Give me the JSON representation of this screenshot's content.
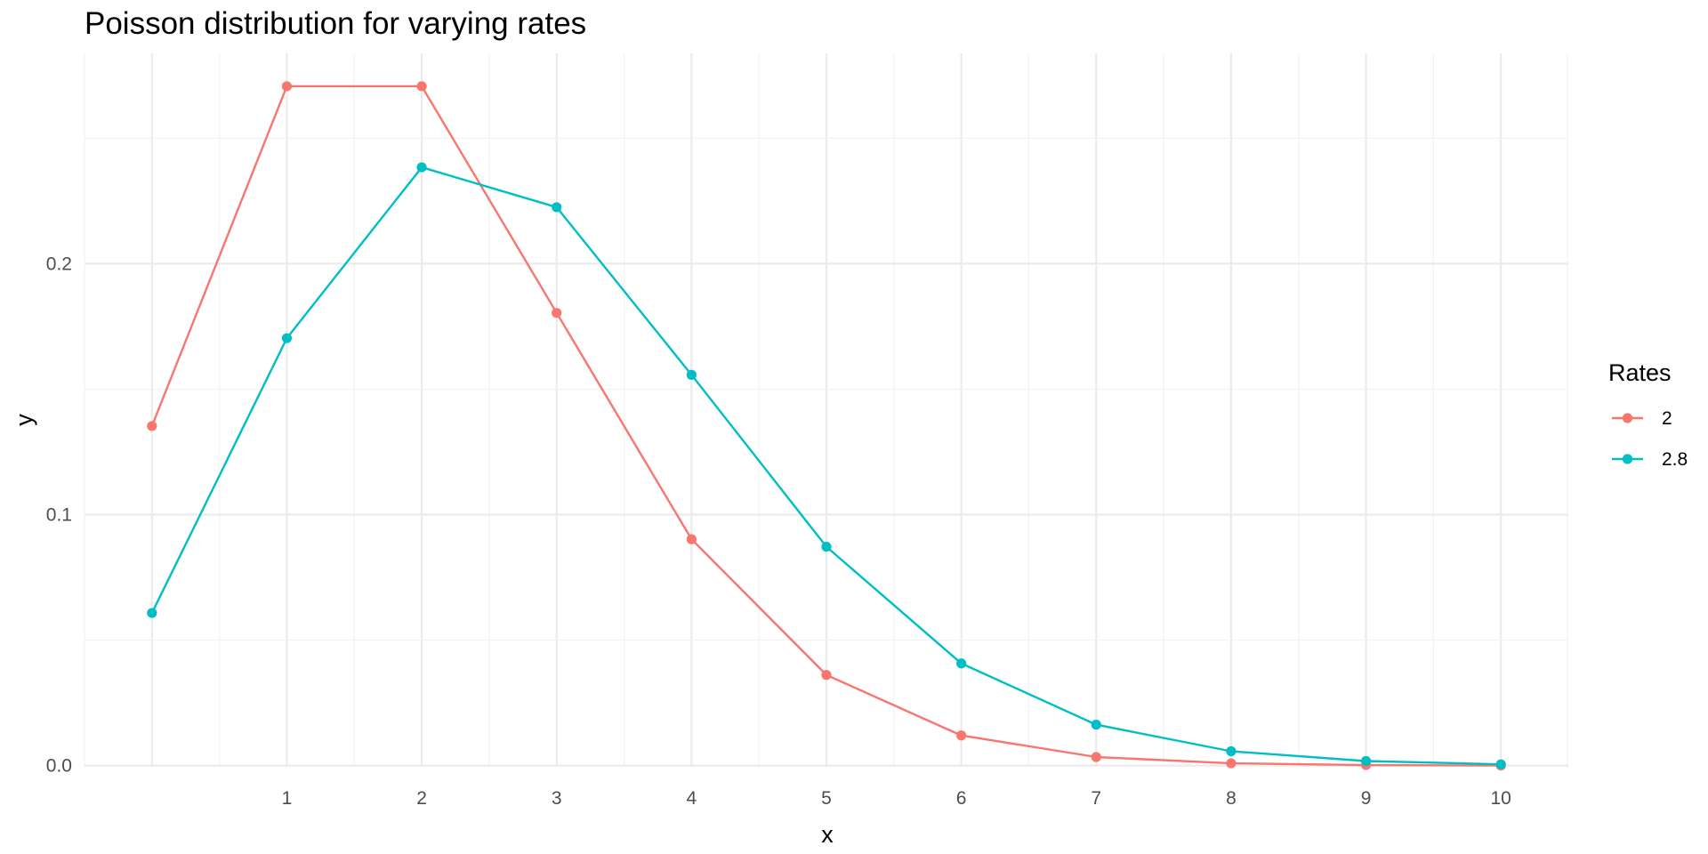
{
  "chart_data": {
    "type": "line",
    "title": "Poisson distribution for varying rates",
    "xlabel": "x",
    "ylabel": "y",
    "x": [
      0,
      1,
      2,
      3,
      4,
      5,
      6,
      7,
      8,
      9,
      10
    ],
    "x_tick_labels": [
      "1",
      "2",
      "3",
      "4",
      "5",
      "6",
      "7",
      "8",
      "9",
      "10"
    ],
    "y_tick_labels": [
      "0.0",
      "0.1",
      "0.2"
    ],
    "y_ticks": [
      0,
      0.1,
      0.2
    ],
    "xlim": [
      -0.5,
      10.5
    ],
    "ylim": [
      -0.0005,
      0.2838
    ],
    "grid": true,
    "legend": {
      "title": "Rates",
      "position": "right"
    },
    "series": [
      {
        "name": "2",
        "color": "#F8766D",
        "values": [
          0.1353,
          0.2707,
          0.2707,
          0.1804,
          0.0902,
          0.0361,
          0.012,
          0.0034,
          0.0009,
          0.0002,
          0.0
        ]
      },
      {
        "name": "2.8",
        "color": "#00BFC4",
        "values": [
          0.0608,
          0.1703,
          0.2384,
          0.2225,
          0.1557,
          0.0872,
          0.0407,
          0.0163,
          0.0057,
          0.0018,
          0.0005
        ]
      }
    ]
  }
}
